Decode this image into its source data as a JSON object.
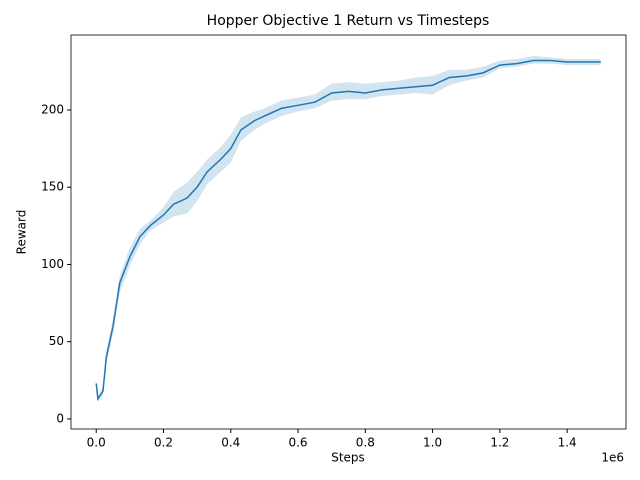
{
  "chart_data": {
    "type": "line",
    "title": "Hopper Objective 1 Return vs Timesteps",
    "x_label": "Steps",
    "y_label": "Reward",
    "x_offset_label": "1e6",
    "x": [
      0,
      5000,
      20000,
      30000,
      50000,
      70000,
      100000,
      130000,
      160000,
      200000,
      230000,
      270000,
      300000,
      330000,
      370000,
      400000,
      430000,
      470000,
      500000,
      550000,
      600000,
      650000,
      700000,
      750000,
      800000,
      850000,
      900000,
      950000,
      1000000,
      1050000,
      1100000,
      1150000,
      1200000,
      1250000,
      1300000,
      1350000,
      1400000,
      1450000,
      1500000
    ],
    "series": [
      {
        "color": "#1f77b4",
        "values": [
          23,
          13,
          18,
          40,
          60,
          88,
          105,
          118,
          125,
          132,
          139,
          143,
          150,
          160,
          168,
          175,
          187,
          193,
          196,
          201,
          203,
          205,
          211,
          212,
          211,
          213,
          214,
          215,
          216,
          221,
          222,
          224,
          229,
          230,
          232,
          232,
          231,
          231,
          231
        ],
        "lower": [
          20,
          11,
          15,
          36,
          55,
          82,
          99,
          113,
          122,
          127,
          131,
          133,
          141,
          152,
          160,
          166,
          180,
          187,
          191,
          196,
          199,
          201,
          206,
          207,
          207,
          209,
          210,
          211,
          210,
          216,
          219,
          221,
          227,
          228,
          230,
          230,
          229,
          229,
          229
        ],
        "upper": [
          25,
          15,
          21,
          44,
          65,
          93,
          111,
          123,
          128,
          137,
          147,
          153,
          160,
          168,
          176,
          184,
          195,
          199,
          201,
          206,
          208,
          210,
          217,
          218,
          217,
          218,
          219,
          221,
          222,
          226,
          226,
          228,
          232,
          233,
          235,
          234,
          233,
          233,
          233
        ]
      }
    ],
    "xlim": [
      -75000,
      1575000
    ],
    "ylim": [
      -6.5,
      248.5
    ],
    "xticks": [
      {
        "value": 0,
        "label": "0.0"
      },
      {
        "value": 200000,
        "label": "0.2"
      },
      {
        "value": 400000,
        "label": "0.4"
      },
      {
        "value": 600000,
        "label": "0.6"
      },
      {
        "value": 800000,
        "label": "0.8"
      },
      {
        "value": 1000000,
        "label": "1.0"
      },
      {
        "value": 1200000,
        "label": "1.2"
      },
      {
        "value": 1400000,
        "label": "1.4"
      }
    ],
    "yticks": [
      0,
      50,
      100,
      150,
      200
    ],
    "grid": false
  }
}
